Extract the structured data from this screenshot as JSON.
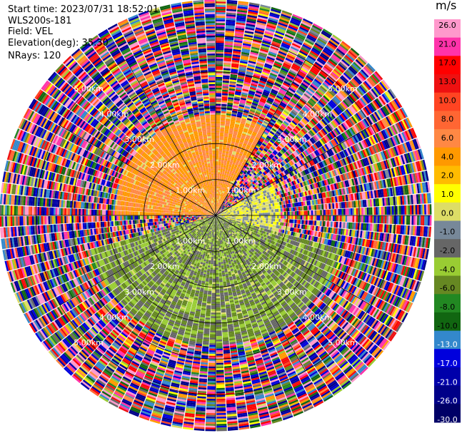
{
  "info": {
    "start_time": "Start time: 2023/07/31 18:52:01",
    "station": "WLS200s-181",
    "field": "Field: VEL",
    "elevation": "Elevation(deg): 35.30",
    "nrays": "NRays: 120"
  },
  "colorbar": {
    "unit": "m/s",
    "ticks": [
      {
        "value": 26.0,
        "label": "26.0"
      },
      {
        "value": 21.0,
        "label": "21.0"
      },
      {
        "value": 17.0,
        "label": "17.0"
      },
      {
        "value": 13.0,
        "label": "13.0"
      },
      {
        "value": 10.0,
        "label": "10.0"
      },
      {
        "value": 8.0,
        "label": "8.0"
      },
      {
        "value": 6.0,
        "label": "6.0"
      },
      {
        "value": 4.0,
        "label": "4.0"
      },
      {
        "value": 2.0,
        "label": "2.0"
      },
      {
        "value": 1.0,
        "label": "1.0"
      },
      {
        "value": 0.0,
        "label": "0.0"
      },
      {
        "value": -1.0,
        "label": "-1.0"
      },
      {
        "value": -2.0,
        "label": "-2.0"
      },
      {
        "value": -4.0,
        "label": "-4.0"
      },
      {
        "value": -6.0,
        "label": "-6.0"
      },
      {
        "value": -8.0,
        "label": "-8.0"
      },
      {
        "value": -10.0,
        "label": "-10.0"
      },
      {
        "value": -13.0,
        "label": "-13.0"
      },
      {
        "value": -17.0,
        "label": "-17.0"
      },
      {
        "value": -21.0,
        "label": "-21.0"
      },
      {
        "value": -26.0,
        "label": "-26.0"
      },
      {
        "value": -30.0,
        "label": "-30.0"
      }
    ],
    "colors": [
      "#ff99cc",
      "#ff33aa",
      "#ff0000",
      "#ee1111",
      "#ff4422",
      "#ff6633",
      "#ff8844",
      "#ff9900",
      "#ffbb00",
      "#ffff00",
      "#dddd66",
      "#778899",
      "#666666",
      "#99cc33",
      "#668822",
      "#228822",
      "#116611",
      "#3388cc",
      "#0000dd",
      "#0000aa",
      "#000088",
      "#000066"
    ]
  },
  "chart_data": {
    "type": "heatmap",
    "projection": "polar",
    "field": "VEL",
    "units": "m/s",
    "n_rays": 120,
    "range_rings_km": [
      1.0,
      2.0,
      3.0,
      4.0,
      5.0
    ],
    "ring_labels": [
      "1.00km",
      "2.00km",
      "3.00km",
      "4.00km",
      "5.00km"
    ],
    "max_range_km": 6.0,
    "radial_lines_deg": [
      0,
      30,
      60,
      90,
      120,
      150,
      180,
      210,
      240,
      270,
      300,
      330
    ],
    "sectors": [
      {
        "azimuth_deg": [
          270,
          30
        ],
        "range_km": [
          0,
          2.8
        ],
        "velocity_ms": [
          2,
          6
        ],
        "note": "yellow/orange"
      },
      {
        "azimuth_deg": [
          60,
          105
        ],
        "range_km": [
          0,
          1.8
        ],
        "velocity_ms": [
          -2,
          1
        ],
        "note": "gray/olive"
      },
      {
        "azimuth_deg": [
          105,
          255
        ],
        "range_km": [
          0,
          3.6
        ],
        "velocity_ms": [
          -8,
          -2
        ],
        "note": "green"
      },
      {
        "azimuth_deg": [
          0,
          360
        ],
        "range_km": [
          3.0,
          6.0
        ],
        "velocity_ms": [
          -30,
          26
        ],
        "note": "noise"
      }
    ]
  }
}
